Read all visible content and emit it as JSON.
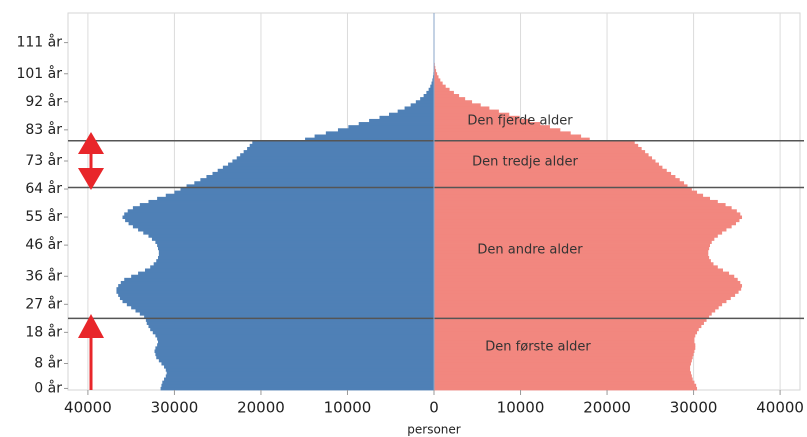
{
  "chart_data": {
    "type": "pyramid",
    "x_label": "personer",
    "xlim": [
      -42300,
      42300
    ],
    "xticks": [
      {
        "value": -40000,
        "label": "40000"
      },
      {
        "value": -30000,
        "label": "30000"
      },
      {
        "value": -20000,
        "label": "20000"
      },
      {
        "value": -10000,
        "label": "10000"
      },
      0,
      10000,
      20000,
      30000,
      40000
    ],
    "ylim": [
      -0.5,
      120.5
    ],
    "yticks": [
      {
        "value": 0,
        "label": "0 år"
      },
      {
        "value": 8,
        "label": "8 år"
      },
      {
        "value": 18,
        "label": "18 år"
      },
      {
        "value": 27,
        "label": "27 år"
      },
      {
        "value": 36,
        "label": "36 år"
      },
      {
        "value": 46,
        "label": "46 år"
      },
      {
        "value": 55,
        "label": "55 år"
      },
      {
        "value": 64,
        "label": "64 år"
      },
      {
        "value": 73,
        "label": "73 år"
      },
      {
        "value": 83,
        "label": "83 år"
      },
      {
        "value": 92,
        "label": "92 år"
      },
      {
        "value": 101,
        "label": "101 år"
      },
      {
        "value": 111,
        "label": "111 år"
      }
    ],
    "grid": true,
    "y": [
      0,
      1,
      2,
      3,
      4,
      5,
      6,
      7,
      8,
      9,
      10,
      11,
      12,
      13,
      14,
      15,
      16,
      17,
      18,
      19,
      20,
      21,
      22,
      23,
      24,
      25,
      26,
      27,
      28,
      29,
      30,
      31,
      32,
      33,
      34,
      35,
      36,
      37,
      38,
      39,
      40,
      41,
      42,
      43,
      44,
      45,
      46,
      47,
      48,
      49,
      50,
      51,
      52,
      53,
      54,
      55,
      56,
      57,
      58,
      59,
      60,
      61,
      62,
      63,
      64,
      65,
      66,
      67,
      68,
      69,
      70,
      71,
      72,
      73,
      74,
      75,
      76,
      77,
      78,
      79,
      80,
      81,
      82,
      83,
      84,
      85,
      86,
      87,
      88,
      89,
      90,
      91,
      92,
      93,
      94,
      95,
      96,
      97,
      98,
      99,
      100,
      101,
      102,
      103,
      104,
      105
    ],
    "series": [
      {
        "color": "#4f80b6",
        "values": [
          -31600,
          -31500,
          -31400,
          -31200,
          -31000,
          -30900,
          -31000,
          -31200,
          -31500,
          -31800,
          -32100,
          -32200,
          -32300,
          -32200,
          -32000,
          -31900,
          -32000,
          -32200,
          -32500,
          -32800,
          -33000,
          -33200,
          -33300,
          -33500,
          -34000,
          -34500,
          -35000,
          -35500,
          -36000,
          -36300,
          -36500,
          -36700,
          -36700,
          -36500,
          -36200,
          -35800,
          -35000,
          -34200,
          -33400,
          -32800,
          -32400,
          -32100,
          -31900,
          -31800,
          -31800,
          -31900,
          -32000,
          -32200,
          -32600,
          -33000,
          -33600,
          -34200,
          -34800,
          -35300,
          -35700,
          -36000,
          -35800,
          -35400,
          -34800,
          -34000,
          -33000,
          -32000,
          -31000,
          -30000,
          -29300,
          -28600,
          -27700,
          -27000,
          -26300,
          -25600,
          -25000,
          -24400,
          -23800,
          -23300,
          -22800,
          -22400,
          -22000,
          -21600,
          -21300,
          -21000,
          -14900,
          -13800,
          -12500,
          -11100,
          -9900,
          -8700,
          -7500,
          -6300,
          -5200,
          -4200,
          -3400,
          -2700,
          -2100,
          -1600,
          -1200,
          -880,
          -620,
          -430,
          -290,
          -190,
          -120,
          -80,
          -50,
          -30,
          -20,
          -10
        ]
      },
      {
        "color": "#f2877f",
        "values": [
          30400,
          30300,
          30100,
          29900,
          29800,
          29700,
          29600,
          29600,
          29700,
          29800,
          29900,
          30000,
          30100,
          30200,
          30200,
          30100,
          30100,
          30200,
          30400,
          30600,
          30900,
          31200,
          31500,
          31800,
          32100,
          32500,
          32900,
          33300,
          33800,
          34300,
          34800,
          35200,
          35500,
          35600,
          35400,
          35100,
          34700,
          34100,
          33400,
          32800,
          32300,
          32000,
          31800,
          31700,
          31700,
          31800,
          31900,
          32100,
          32400,
          32800,
          33300,
          33800,
          34400,
          34900,
          35300,
          35600,
          35400,
          35000,
          34400,
          33700,
          32800,
          31900,
          31100,
          30400,
          29800,
          29300,
          28900,
          28400,
          27900,
          27400,
          26900,
          26400,
          26000,
          25600,
          25200,
          24800,
          24400,
          24000,
          23600,
          23200,
          18000,
          17000,
          15800,
          14600,
          13400,
          12300,
          11100,
          9900,
          8700,
          7500,
          6400,
          5400,
          4400,
          3600,
          2900,
          2300,
          1800,
          1350,
          1000,
          730,
          520,
          360,
          240,
          150,
          90,
          50
        ]
      }
    ],
    "hlines": [
      79.5,
      64.5,
      22.5
    ],
    "annotations": [
      "Den fjerde alder",
      "Den tredje alder",
      "Den andre alder",
      "Den første alder"
    ]
  }
}
